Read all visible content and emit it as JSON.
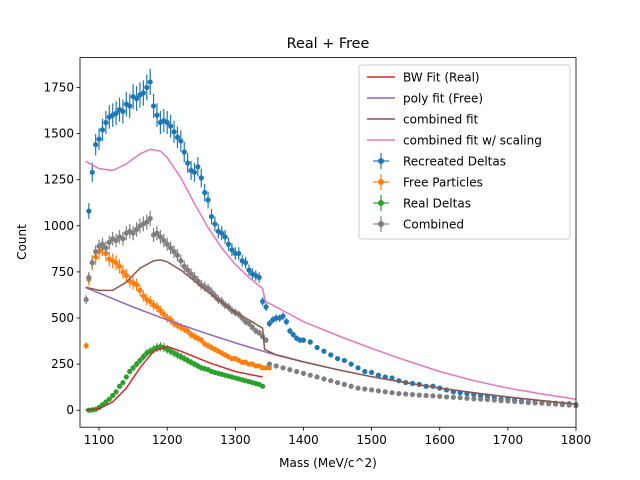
{
  "chart_data": {
    "type": "scatter",
    "title": "Real + Free",
    "xlabel": "Mass (MeV/c^2)",
    "ylabel": "Count",
    "xlim": [
      1072,
      1800
    ],
    "ylim": [
      -92,
      1912
    ],
    "xticks": [
      1100,
      1200,
      1300,
      1400,
      1500,
      1600,
      1700,
      1800
    ],
    "yticks": [
      0,
      250,
      500,
      750,
      1000,
      1250,
      1500,
      1750
    ],
    "legend_position": "top-right",
    "legend": [
      {
        "label": "BW Fit (Real)",
        "kind": "line",
        "color": "#d62728"
      },
      {
        "label": "poly fit (Free)",
        "kind": "line",
        "color": "#9467bd"
      },
      {
        "label": "combined fit",
        "kind": "line",
        "color": "#8c564b"
      },
      {
        "label": "combined fit w/ scaling",
        "kind": "line",
        "color": "#e377c2"
      },
      {
        "label": "Recreated Deltas",
        "kind": "errorbar",
        "color": "#1f77b4"
      },
      {
        "label": "Free Particles",
        "kind": "errorbar",
        "color": "#ff7f0e"
      },
      {
        "label": "Real Deltas",
        "kind": "errorbar",
        "color": "#2ca02c"
      },
      {
        "label": "Combined",
        "kind": "errorbar",
        "color": "#7f7f7f"
      }
    ],
    "lines": [
      {
        "name": "BW Fit (Real)",
        "color": "#d62728",
        "x": [
          1080,
          1100,
          1120,
          1140,
          1160,
          1180,
          1200,
          1220,
          1240,
          1260,
          1280,
          1300,
          1320,
          1340
        ],
        "y": [
          2,
          8,
          45,
          120,
          230,
          320,
          345,
          320,
          290,
          260,
          235,
          210,
          195,
          180
        ]
      },
      {
        "name": "poly fit (Free)",
        "color": "#9467bd",
        "x": [
          1080,
          1100,
          1150,
          1200,
          1250,
          1300,
          1350,
          1400,
          1450,
          1500,
          1550,
          1600,
          1650,
          1700,
          1750,
          1800
        ],
        "y": [
          665,
          635,
          560,
          490,
          425,
          365,
          310,
          262,
          220,
          182,
          150,
          120,
          95,
          72,
          52,
          33
        ]
      },
      {
        "name": "combined fit",
        "color": "#8c564b",
        "x": [
          1080,
          1100,
          1120,
          1140,
          1160,
          1180,
          1190,
          1200,
          1220,
          1240,
          1260,
          1280,
          1300,
          1320,
          1340,
          1343,
          1360,
          1400,
          1450,
          1500,
          1550,
          1600,
          1650,
          1700,
          1750,
          1800
        ],
        "y": [
          667,
          650,
          650,
          695,
          770,
          810,
          815,
          805,
          760,
          700,
          640,
          585,
          530,
          490,
          445,
          330,
          300,
          262,
          220,
          182,
          150,
          120,
          95,
          72,
          52,
          33
        ]
      },
      {
        "name": "combined fit w/ scaling",
        "color": "#e377c2",
        "x": [
          1080,
          1100,
          1120,
          1140,
          1160,
          1175,
          1190,
          1200,
          1220,
          1240,
          1260,
          1280,
          1300,
          1320,
          1340,
          1344,
          1360,
          1400,
          1450,
          1500,
          1550,
          1600,
          1650,
          1700,
          1750,
          1800
        ],
        "y": [
          1350,
          1310,
          1300,
          1335,
          1390,
          1415,
          1405,
          1370,
          1260,
          1120,
          990,
          880,
          790,
          720,
          660,
          590,
          560,
          480,
          405,
          335,
          270,
          210,
          160,
          120,
          88,
          60
        ]
      }
    ],
    "series": [
      {
        "name": "Recreated Deltas",
        "color": "#1f77b4",
        "err_frac": 0.04,
        "x": [
          1085,
          1090,
          1095,
          1100,
          1105,
          1110,
          1115,
          1120,
          1125,
          1130,
          1135,
          1140,
          1145,
          1150,
          1155,
          1160,
          1165,
          1170,
          1175,
          1180,
          1185,
          1190,
          1195,
          1200,
          1205,
          1210,
          1215,
          1220,
          1225,
          1230,
          1235,
          1240,
          1245,
          1250,
          1255,
          1260,
          1265,
          1270,
          1275,
          1280,
          1285,
          1290,
          1295,
          1300,
          1305,
          1310,
          1315,
          1320,
          1325,
          1330,
          1335,
          1340,
          1345,
          1350,
          1355,
          1360,
          1365,
          1370,
          1375,
          1380,
          1385,
          1390,
          1395,
          1400,
          1410,
          1420,
          1430,
          1440,
          1450,
          1460,
          1470,
          1480,
          1490,
          1500,
          1510,
          1520,
          1530,
          1540,
          1550,
          1560,
          1570,
          1580,
          1590,
          1600,
          1610,
          1620,
          1630,
          1640,
          1650,
          1660,
          1670,
          1680,
          1690,
          1700,
          1710,
          1720,
          1730,
          1740,
          1750,
          1760,
          1770,
          1780,
          1790,
          1800
        ],
        "y": [
          1080,
          1290,
          1440,
          1470,
          1520,
          1560,
          1590,
          1600,
          1610,
          1630,
          1620,
          1660,
          1650,
          1700,
          1690,
          1710,
          1720,
          1750,
          1780,
          1650,
          1600,
          1560,
          1570,
          1560,
          1540,
          1510,
          1480,
          1460,
          1400,
          1340,
          1300,
          1290,
          1320,
          1260,
          1180,
          1140,
          1050,
          1010,
          970,
          960,
          940,
          900,
          870,
          850,
          850,
          810,
          800,
          760,
          740,
          730,
          720,
          590,
          560,
          470,
          490,
          500,
          500,
          510,
          480,
          430,
          410,
          390,
          380,
          380,
          370,
          340,
          320,
          300,
          280,
          270,
          250,
          230,
          210,
          205,
          190,
          180,
          175,
          160,
          150,
          145,
          140,
          130,
          130,
          120,
          110,
          100,
          95,
          90,
          85,
          80,
          75,
          70,
          60,
          60,
          55,
          50,
          45,
          45,
          40,
          40,
          38,
          35,
          35,
          30
        ]
      },
      {
        "name": "Free Particles",
        "color": "#ff7f0e",
        "err_frac": 0.05,
        "x": [
          1081,
          1085,
          1090,
          1095,
          1100,
          1105,
          1110,
          1115,
          1120,
          1125,
          1130,
          1135,
          1140,
          1145,
          1150,
          1155,
          1160,
          1165,
          1170,
          1175,
          1180,
          1185,
          1190,
          1195,
          1200,
          1205,
          1210,
          1215,
          1220,
          1225,
          1230,
          1235,
          1240,
          1245,
          1250,
          1255,
          1260,
          1265,
          1270,
          1275,
          1280,
          1285,
          1290,
          1295,
          1300,
          1305,
          1310,
          1315,
          1320,
          1325,
          1330,
          1335,
          1340,
          1345,
          1350
        ],
        "y": [
          350,
          710,
          800,
          830,
          860,
          880,
          850,
          820,
          810,
          800,
          780,
          750,
          730,
          700,
          690,
          680,
          650,
          620,
          600,
          590,
          570,
          560,
          540,
          520,
          500,
          490,
          470,
          460,
          450,
          440,
          430,
          410,
          400,
          390,
          380,
          360,
          350,
          340,
          330,
          320,
          310,
          300,
          290,
          280,
          280,
          270,
          260,
          260,
          250,
          250,
          240,
          240,
          230,
          230,
          230
        ]
      },
      {
        "name": "Real Deltas",
        "color": "#2ca02c",
        "err_frac": 0.07,
        "x": [
          1085,
          1090,
          1095,
          1100,
          1105,
          1110,
          1115,
          1120,
          1125,
          1130,
          1135,
          1140,
          1145,
          1150,
          1155,
          1160,
          1165,
          1170,
          1175,
          1180,
          1185,
          1190,
          1195,
          1200,
          1205,
          1210,
          1215,
          1220,
          1225,
          1230,
          1235,
          1240,
          1245,
          1250,
          1255,
          1260,
          1265,
          1270,
          1275,
          1280,
          1285,
          1290,
          1295,
          1300,
          1305,
          1310,
          1315,
          1320,
          1325,
          1330,
          1335,
          1340
        ],
        "y": [
          0,
          2,
          5,
          15,
          30,
          45,
          60,
          80,
          100,
          130,
          150,
          180,
          210,
          230,
          250,
          270,
          290,
          310,
          320,
          330,
          340,
          345,
          340,
          330,
          320,
          310,
          300,
          290,
          280,
          270,
          260,
          250,
          240,
          230,
          225,
          220,
          210,
          205,
          200,
          195,
          190,
          185,
          180,
          175,
          170,
          165,
          160,
          155,
          150,
          145,
          140,
          130
        ]
      },
      {
        "name": "Combined",
        "color": "#7f7f7f",
        "err_frac": 0.04,
        "x": [
          1081,
          1085,
          1090,
          1095,
          1100,
          1105,
          1110,
          1115,
          1120,
          1125,
          1130,
          1135,
          1140,
          1145,
          1150,
          1155,
          1160,
          1165,
          1170,
          1175,
          1180,
          1185,
          1190,
          1195,
          1200,
          1205,
          1210,
          1215,
          1220,
          1225,
          1230,
          1235,
          1240,
          1245,
          1250,
          1255,
          1260,
          1265,
          1270,
          1275,
          1280,
          1285,
          1290,
          1295,
          1300,
          1305,
          1310,
          1315,
          1320,
          1325,
          1330,
          1335,
          1340,
          1345,
          1350,
          1360,
          1370,
          1380,
          1390,
          1400,
          1410,
          1420,
          1430,
          1440,
          1450,
          1460,
          1470,
          1480,
          1490,
          1500,
          1510,
          1520,
          1530,
          1540,
          1550,
          1560,
          1570,
          1580,
          1590,
          1600,
          1610,
          1620,
          1630,
          1640,
          1650,
          1660,
          1670,
          1680,
          1690,
          1700,
          1710,
          1720,
          1730,
          1740,
          1750,
          1760,
          1770,
          1780,
          1790,
          1800
        ],
        "y": [
          600,
          720,
          800,
          860,
          890,
          900,
          880,
          910,
          930,
          920,
          940,
          930,
          960,
          970,
          960,
          980,
          1000,
          1010,
          1020,
          1040,
          950,
          960,
          940,
          920,
          900,
          880,
          860,
          840,
          810,
          780,
          760,
          740,
          720,
          700,
          680,
          670,
          660,
          640,
          620,
          600,
          590,
          570,
          560,
          540,
          530,
          520,
          500,
          480,
          470,
          450,
          430,
          420,
          400,
          380,
          250,
          240,
          230,
          220,
          210,
          200,
          190,
          180,
          170,
          160,
          150,
          140,
          130,
          120,
          115,
          110,
          105,
          100,
          95,
          90,
          88,
          85,
          82,
          80,
          78,
          75,
          72,
          70,
          68,
          65,
          62,
          60,
          58,
          55,
          52,
          50,
          48,
          45,
          42,
          40,
          38,
          35,
          33,
          30,
          28,
          25
        ]
      }
    ]
  }
}
